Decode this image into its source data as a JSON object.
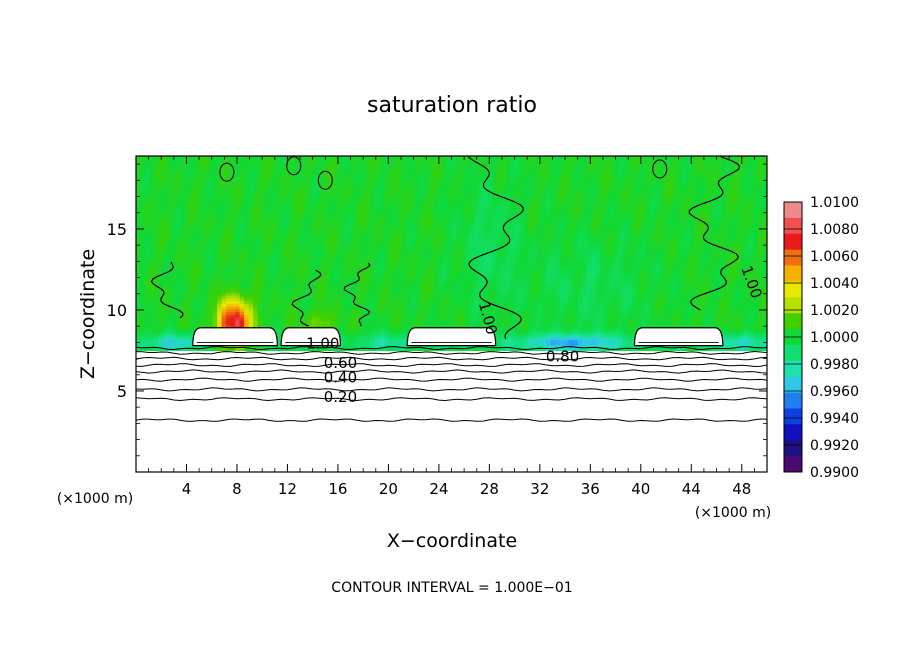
{
  "chart_data": {
    "type": "heatmap",
    "title": "saturation ratio",
    "xlabel": "X−coordinate",
    "ylabel": "Z−coordinate",
    "x_unit": "(×1000 m)",
    "z_unit": "(×1000 m)",
    "xlim": [
      0,
      50
    ],
    "ylim": [
      0,
      19.5
    ],
    "x_ticks": [
      4,
      8,
      12,
      16,
      20,
      24,
      28,
      32,
      36,
      40,
      44,
      48
    ],
    "y_ticks": [
      5,
      10,
      15
    ],
    "colorbar": {
      "range": [
        0.99,
        1.01
      ],
      "labels": [
        "1.0100",
        "1.0080",
        "1.0060",
        "1.0040",
        "1.0020",
        "1.0000",
        "0.9980",
        "0.9960",
        "0.9940",
        "0.9920",
        "0.9900"
      ],
      "colors": [
        "#f08a8a",
        "#f25050",
        "#e81a1a",
        "#f07010",
        "#f5b000",
        "#e8e800",
        "#b8e000",
        "#40d000",
        "#10d838",
        "#10e070",
        "#20e0b0",
        "#30c8e8",
        "#2080f0",
        "#1040e0",
        "#1010c0",
        "#201080",
        "#4a0a70"
      ]
    },
    "contour_labels": [
      {
        "text": "1.00",
        "x": 14.8,
        "z": 7.8
      },
      {
        "text": "0.60",
        "x": 16.2,
        "z": 6.6
      },
      {
        "text": "0.40",
        "x": 16.2,
        "z": 5.7
      },
      {
        "text": "0.20",
        "x": 16.2,
        "z": 4.5
      },
      {
        "text": "0.80",
        "x": 33.8,
        "z": 7.0
      },
      {
        "text": "1.00",
        "x": 27.5,
        "z": 9.6
      },
      {
        "text": "1.00",
        "x": 48.4,
        "z": 11.8
      }
    ],
    "contour_levels": [
      0.2,
      0.3,
      0.4,
      0.5,
      0.6,
      0.7,
      0.8,
      0.9,
      1.0
    ],
    "cloud_x_ranges": [
      [
        4.5,
        11.2
      ],
      [
        11.5,
        16.2
      ],
      [
        21.5,
        28.5
      ],
      [
        39.5,
        46.5
      ]
    ],
    "cloud_base_z": 7.8,
    "warm_max": {
      "x": 7.8,
      "z": 9.2,
      "value": 1.009
    },
    "cool_minima": [
      {
        "x": 34.5,
        "value": 0.992
      },
      {
        "x": 3.5,
        "value": 0.993
      },
      {
        "x": 48.0,
        "value": 0.994
      }
    ],
    "footnote": "CONTOUR INTERVAL = 1.000E−01"
  }
}
